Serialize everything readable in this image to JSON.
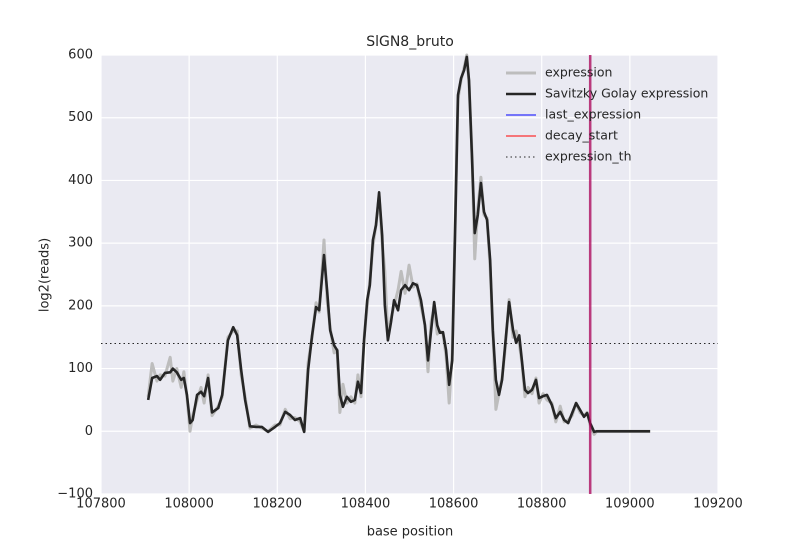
{
  "chart_data": {
    "type": "line",
    "title": "SlGN8_bruto",
    "xlabel": "base position",
    "ylabel": "log2(reads)",
    "xlim": [
      107800,
      109200
    ],
    "ylim": [
      -100,
      600
    ],
    "xticks": [
      107800,
      108000,
      108200,
      108400,
      108600,
      108800,
      109000,
      109200
    ],
    "yticks": [
      {
        "value": -100,
        "label": "−100"
      },
      0,
      100,
      200,
      300,
      400,
      500,
      600
    ],
    "grid": true,
    "legend": "upper right",
    "x": [
      107907,
      107916,
      107927,
      107934,
      107945,
      107957,
      107963,
      107972,
      107982,
      107988,
      107995,
      108002,
      108008,
      108018,
      108027,
      108034,
      108043,
      108052,
      108066,
      108075,
      108088,
      108100,
      108109,
      108118,
      108127,
      108138,
      108152,
      108165,
      108179,
      108195,
      108206,
      108218,
      108229,
      108240,
      108252,
      108261,
      108270,
      108279,
      108288,
      108295,
      108301,
      108306,
      108313,
      108320,
      108329,
      108336,
      108342,
      108349,
      108358,
      108367,
      108376,
      108383,
      108390,
      108397,
      108404,
      108410,
      108417,
      108424,
      108431,
      108438,
      108444,
      108451,
      108458,
      108465,
      108474,
      108481,
      108490,
      108499,
      108508,
      108517,
      108526,
      108535,
      108542,
      108549,
      108556,
      108563,
      108569,
      108576,
      108583,
      108590,
      108597,
      108603,
      108610,
      108617,
      108624,
      108630,
      108635,
      108642,
      108648,
      108655,
      108662,
      108669,
      108676,
      108683,
      108689,
      108696,
      108703,
      108710,
      108717,
      108726,
      108735,
      108742,
      108749,
      108755,
      108762,
      108769,
      108778,
      108787,
      108794,
      108803,
      108812,
      108823,
      108832,
      108842,
      108851,
      108860,
      108869,
      108878,
      108887,
      108896,
      108903,
      108910,
      108919,
      108925,
      108932,
      109046
    ],
    "series": [
      {
        "name": "expression",
        "color": "#bdbdbd",
        "width": 3,
        "values": [
          55,
          108,
          80,
          90,
          88,
          118,
          80,
          100,
          70,
          95,
          55,
          0,
          25,
          50,
          70,
          45,
          90,
          25,
          40,
          55,
          150,
          160,
          160,
          90,
          55,
          5,
          10,
          5,
          0,
          10,
          10,
          35,
          20,
          22,
          15,
          0,
          110,
          150,
          205,
          190,
          250,
          305,
          210,
          165,
          125,
          130,
          30,
          75,
          45,
          55,
          45,
          90,
          55,
          150,
          200,
          240,
          295,
          330,
          375,
          300,
          255,
          150,
          180,
          200,
          225,
          255,
          220,
          265,
          230,
          235,
          200,
          170,
          95,
          175,
          195,
          155,
          160,
          155,
          120,
          45,
          125,
          310,
          530,
          560,
          580,
          600,
          555,
          440,
          275,
          355,
          405,
          345,
          340,
          260,
          165,
          35,
          60,
          85,
          130,
          210,
          150,
          160,
          140,
          110,
          55,
          70,
          60,
          85,
          45,
          60,
          50,
          45,
          15,
          40,
          15,
          18,
          25,
          45,
          30,
          25,
          30,
          10,
          -5,
          0,
          0,
          0
        ]
      },
      {
        "name": "Savitzky Golay expression",
        "color": "#262626",
        "width": 2.6,
        "values": [
          50,
          85,
          88,
          82,
          93,
          94,
          100,
          94,
          82,
          85,
          58,
          13,
          18,
          58,
          63,
          56,
          85,
          30,
          37,
          58,
          145,
          166,
          153,
          98,
          50,
          8,
          7,
          7,
          -1,
          7,
          13,
          31,
          26,
          18,
          21,
          -1,
          98,
          153,
          198,
          193,
          241,
          281,
          225,
          161,
          137,
          129,
          58,
          39,
          55,
          47,
          50,
          79,
          61,
          145,
          209,
          233,
          305,
          329,
          381,
          312,
          201,
          145,
          174,
          209,
          193,
          225,
          233,
          225,
          236,
          233,
          209,
          169,
          113,
          161,
          206,
          169,
          157,
          158,
          129,
          74,
          113,
          305,
          536,
          563,
          576,
          597,
          560,
          433,
          316,
          345,
          396,
          350,
          337,
          273,
          161,
          82,
          58,
          82,
          137,
          206,
          161,
          141,
          153,
          113,
          66,
          61,
          66,
          82,
          53,
          56,
          58,
          42,
          21,
          31,
          18,
          13,
          29,
          45,
          34,
          23,
          29,
          13,
          -1,
          0,
          0,
          0
        ]
      }
    ],
    "vlines": [
      {
        "name": "last_expression",
        "color": "#0000ff",
        "alpha": 0.5,
        "x": 108910
      },
      {
        "name": "decay_start",
        "color": "#ff0000",
        "alpha": 0.5,
        "x": 108910
      }
    ],
    "hlines": [
      {
        "name": "expression_th",
        "color": "#262626",
        "style": "dotted",
        "y": 140
      }
    ]
  }
}
